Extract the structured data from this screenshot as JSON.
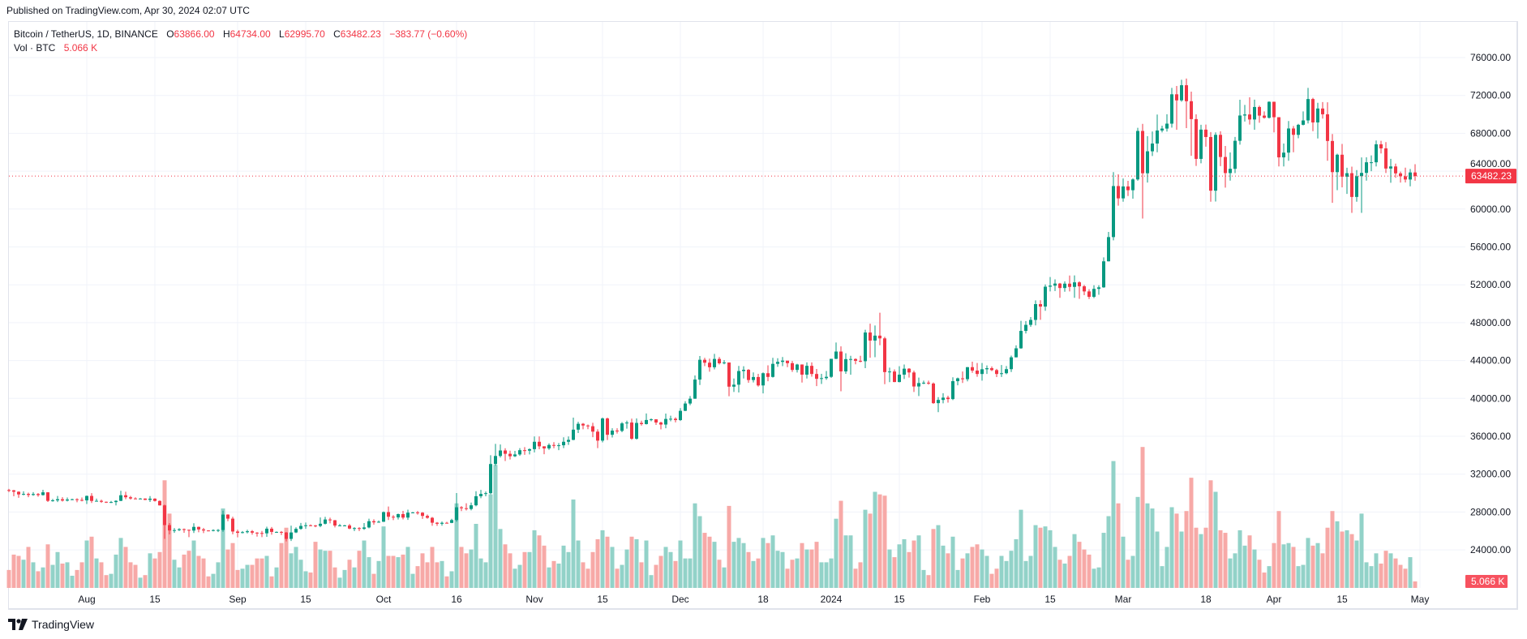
{
  "published": "Published on TradingView.com, Apr 30, 2024 02:07 UTC",
  "legend": {
    "symbol": "Bitcoin / TetherUS, 1D, BINANCE",
    "o_label": "O",
    "open": "63866.00",
    "h_label": "H",
    "high": "64734.00",
    "l_label": "L",
    "low": "62995.70",
    "c_label": "C",
    "close": "63482.23",
    "change": "−383.77 (−0.60%)",
    "vol_label": "Vol · BTC",
    "vol_value": "5.066 K"
  },
  "footer": {
    "brand": "TradingView"
  },
  "colors": {
    "up": "#089981",
    "down": "#f23645",
    "vol_up": "#92d2c8",
    "vol_down": "#f7a9a7",
    "price_label_bg": "#f23645",
    "vol_label_bg": "#f7525f",
    "grid": "#f0f3fa"
  },
  "chart_data": {
    "type": "candlestick",
    "title": "Bitcoin / TetherUS, 1D, BINANCE",
    "start_date": "2023-07-16",
    "first_open": 30320,
    "note": "open of each day equals previous close",
    "close": [
      30290,
      30140,
      29860,
      29910,
      29800,
      29900,
      29790,
      30080,
      29180,
      29230,
      29350,
      29210,
      29320,
      29350,
      29280,
      29230,
      29700,
      29170,
      29180,
      29080,
      29040,
      29050,
      29180,
      29770,
      29560,
      29430,
      29400,
      29420,
      29280,
      29410,
      29170,
      28700,
      26620,
      26050,
      26090,
      26190,
      26120,
      26040,
      26430,
      26160,
      26050,
      26010,
      26090,
      26100,
      27730,
      27300,
      25940,
      25800,
      25870,
      25970,
      25820,
      25780,
      25750,
      26240,
      25900,
      25900,
      25840,
      25160,
      25840,
      26220,
      26530,
      26600,
      26570,
      26530,
      26760,
      27210,
      27130,
      26570,
      26580,
      26580,
      26250,
      26300,
      26220,
      26370,
      27030,
      26910,
      26970,
      27990,
      27500,
      27430,
      27780,
      27410,
      27930,
      27960,
      27930,
      27590,
      27390,
      26870,
      26760,
      26860,
      26850,
      27150,
      28500,
      28400,
      28320,
      28710,
      29670,
      29910,
      29990,
      33070,
      33920,
      34500,
      34150,
      33890,
      34080,
      34530,
      34480,
      34640,
      35420,
      34940,
      34720,
      35080,
      35010,
      35050,
      35420,
      35620,
      36700,
      37320,
      37140,
      37060,
      36490,
      35540,
      37880,
      36160,
      36600,
      36570,
      37360,
      37450,
      35740,
      37410,
      37290,
      37720,
      37790,
      37450,
      37240,
      37830,
      37850,
      37710,
      38690,
      39460,
      39970,
      41990,
      44080,
      43770,
      43290,
      44170,
      43710,
      43790,
      41240,
      41450,
      42890,
      43020,
      41940,
      42260,
      41370,
      42660,
      42270,
      43650,
      43860,
      43990,
      43720,
      43010,
      43580,
      42510,
      43440,
      42580,
      42070,
      42140,
      42280,
      44180,
      44950,
      42850,
      44150,
      44160,
      43970,
      43930,
      46960,
      46110,
      46630,
      46340,
      42780,
      42840,
      41730,
      42510,
      43140,
      42740,
      41260,
      41620,
      41660,
      41570,
      39500,
      39840,
      40080,
      39930,
      41820,
      42120,
      42030,
      43300,
      42940,
      42580,
      43080,
      43190,
      42990,
      42580,
      42660,
      43090,
      44340,
      45290,
      47130,
      47770,
      48290,
      49960,
      49700,
      51800,
      51910,
      52130,
      51660,
      52120,
      51780,
      52260,
      51840,
      51300,
      50730,
      51570,
      51730,
      54480,
      57040,
      62430,
      61130,
      62390,
      61990,
      63130,
      68250,
      63780,
      66100,
      66920,
      68300,
      68500,
      69020,
      72120,
      71480,
      73080,
      71390,
      69500,
      65300,
      68390,
      67610,
      61940,
      67840,
      65500,
      63800,
      64250,
      67210,
      69880,
      69990,
      69460,
      70780,
      69870,
      69640,
      71330,
      69700,
      65460,
      65960,
      68510,
      67840,
      68900,
      69360,
      71620,
      69150,
      70620,
      70010,
      67190,
      63900,
      65740,
      63420,
      63790,
      61280,
      63470,
      63820,
      64940,
      64940,
      66840,
      66410,
      64280,
      64500,
      63770,
      63460,
      63120,
      63866,
      63482.23
    ],
    "high": [
      30440,
      30340,
      30190,
      30190,
      30050,
      30100,
      30000,
      30350,
      30100,
      29380,
      29690,
      29570,
      29530,
      29410,
      29450,
      29530,
      29740,
      29990,
      29420,
      29310,
      29110,
      29170,
      29240,
      30240,
      30140,
      29700,
      29550,
      29480,
      29450,
      29680,
      29460,
      29220,
      28780,
      26830,
      26300,
      26290,
      26260,
      26140,
      26810,
      26460,
      26320,
      26080,
      26170,
      26190,
      28140,
      27760,
      27500,
      26130,
      25990,
      26130,
      26100,
      25870,
      26000,
      26450,
      26420,
      25950,
      25990,
      25880,
      26560,
      26390,
      26850,
      26890,
      26680,
      26630,
      27420,
      27490,
      27400,
      27160,
      26740,
      26640,
      26740,
      26400,
      26400,
      26840,
      27300,
      27230,
      27100,
      28060,
      28580,
      27670,
      27830,
      28120,
      28250,
      28000,
      28110,
      27990,
      27730,
      27480,
      26940,
      27000,
      26960,
      27290,
      30000,
      28620,
      28920,
      29000,
      30200,
      30340,
      30170,
      34000,
      35200,
      35130,
      34740,
      34480,
      34460,
      34750,
      34850,
      34720,
      35980,
      35980,
      34940,
      35250,
      35380,
      35280,
      35890,
      35980,
      37970,
      37530,
      37400,
      37240,
      37420,
      36740,
      37980,
      37970,
      36850,
      36850,
      37500,
      37650,
      37860,
      37880,
      37650,
      38410,
      37880,
      37800,
      37540,
      38400,
      38170,
      38000,
      38980,
      39700,
      40250,
      42420,
      44480,
      44290,
      44200,
      44700,
      44370,
      44040,
      43780,
      42100,
      43430,
      43400,
      43100,
      42750,
      42590,
      42740,
      43490,
      44290,
      44240,
      44370,
      43820,
      43950,
      43650,
      43590,
      43800,
      43800,
      43110,
      42600,
      42900,
      44180,
      45900,
      45500,
      44770,
      44500,
      44230,
      44500,
      47250,
      47900,
      47700,
      49050,
      46500,
      43250,
      43070,
      43400,
      43580,
      43200,
      42930,
      42200,
      41880,
      41880,
      41680,
      40130,
      40550,
      40280,
      42230,
      42200,
      42840,
      43310,
      43880,
      43740,
      43740,
      43480,
      43380,
      43120,
      43530,
      43420,
      44520,
      45600,
      48200,
      48170,
      48590,
      50360,
      50370,
      52040,
      52820,
      52570,
      52200,
      52360,
      52980,
      52990,
      52370,
      51980,
      51540,
      51950,
      51950,
      54900,
      57580,
      63900,
      63680,
      63230,
      62980,
      63250,
      68580,
      69000,
      67700,
      68200,
      69980,
      68800,
      70010,
      72800,
      73000,
      73650,
      73780,
      72400,
      70000,
      68900,
      68920,
      68130,
      68100,
      68220,
      66660,
      65980,
      67620,
      71550,
      71000,
      71800,
      71560,
      70930,
      70320,
      71370,
      71340,
      69700,
      66920,
      69300,
      68770,
      69000,
      70310,
      72800,
      71750,
      71230,
      71300,
      71280,
      67930,
      65850,
      66880,
      64360,
      64480,
      64120,
      65450,
      65470,
      65670,
      67240,
      67210,
      67070,
      65300,
      64800,
      63950,
      64370,
      64230,
      64734
    ],
    "low": [
      30110,
      29660,
      29500,
      29770,
      29570,
      29720,
      29620,
      29740,
      29060,
      29090,
      29050,
      29100,
      29120,
      29250,
      29030,
      29130,
      28850,
      28950,
      29100,
      28970,
      28950,
      28960,
      28700,
      29150,
      29350,
      29310,
      29350,
      29360,
      29250,
      29060,
      29100,
      28690,
      25170,
      25640,
      25800,
      25990,
      25810,
      25350,
      25790,
      25860,
      25780,
      25970,
      25960,
      25880,
      25910,
      27030,
      25650,
      25330,
      25740,
      25740,
      25600,
      25400,
      25350,
      25380,
      25600,
      25800,
      25570,
      24900,
      24940,
      25770,
      26130,
      26220,
      26500,
      26400,
      26400,
      26690,
      26800,
      26370,
      26500,
      26500,
      26180,
      25990,
      25990,
      26120,
      26280,
      26660,
      26870,
      26950,
      27160,
      27150,
      27210,
      27220,
      27170,
      27860,
      27720,
      27270,
      27300,
      26550,
      26530,
      26560,
      26810,
      26820,
      26970,
      28100,
      28160,
      28170,
      28600,
      29460,
      29660,
      29880,
      32880,
      33750,
      33390,
      33550,
      33800,
      33930,
      34040,
      34080,
      34300,
      34630,
      34110,
      34570,
      34740,
      34530,
      34750,
      35090,
      35580,
      36340,
      36740,
      36750,
      35900,
      34750,
      35360,
      35600,
      35870,
      36290,
      36430,
      36800,
      35620,
      35650,
      37120,
      37240,
      37580,
      37200,
      36730,
      36850,
      37580,
      37470,
      37620,
      38650,
      39280,
      39960,
      41420,
      43410,
      42820,
      43070,
      43580,
      43600,
      40230,
      40680,
      40630,
      42100,
      41650,
      41690,
      41250,
      40530,
      41810,
      42200,
      43330,
      43410,
      43300,
      42800,
      42730,
      41670,
      42100,
      42300,
      41300,
      41520,
      41960,
      42170,
      44150,
      40750,
      42600,
      42500,
      43600,
      43800,
      43200,
      44300,
      44350,
      45610,
      41500,
      41720,
      41720,
      41700,
      42050,
      42200,
      40680,
      40250,
      41500,
      41450,
      39430,
      38550,
      39480,
      39550,
      39820,
      41390,
      41630,
      41800,
      42700,
      42280,
      41880,
      42580,
      42880,
      42250,
      42260,
      42550,
      42790,
      44330,
      45240,
      46860,
      47560,
      47710,
      48300,
      49260,
      51300,
      51340,
      50620,
      51270,
      51300,
      50620,
      50520,
      50900,
      50500,
      50590,
      50950,
      51680,
      54470,
      56700,
      60360,
      60770,
      61370,
      61100,
      62990,
      59000,
      62800,
      65600,
      66000,
      68100,
      68180,
      68600,
      68380,
      71330,
      68550,
      65630,
      64550,
      64830,
      66590,
      60780,
      60800,
      64530,
      62260,
      63000,
      63790,
      66800,
      69240,
      68920,
      68380,
      69120,
      69550,
      69560,
      68100,
      64500,
      64500,
      65100,
      66000,
      67480,
      68840,
      69040,
      68230,
      67460,
      69550,
      65100,
      60660,
      62000,
      62300,
      61600,
      59600,
      60770,
      59600,
      63000,
      64000,
      64500,
      65870,
      63800,
      62780,
      63300,
      62800,
      62810,
      62400,
      62995.7
    ],
    "volume_k": [
      14,
      26,
      25,
      22,
      32,
      20,
      13,
      16,
      34,
      18,
      28,
      19,
      20,
      9.5,
      14,
      20,
      37,
      40,
      23,
      20,
      10,
      11,
      26,
      39,
      32,
      20,
      18,
      8,
      10,
      27,
      23,
      28,
      84,
      58,
      22,
      16,
      26,
      29,
      37,
      25,
      23,
      9,
      11,
      20,
      62,
      30,
      35,
      14,
      15,
      18,
      18,
      23,
      23,
      25,
      9,
      16,
      35,
      47,
      27,
      32,
      22,
      13,
      12,
      36,
      30,
      29,
      29,
      16,
      8,
      14,
      22,
      16,
      29,
      37,
      24,
      11,
      21,
      48,
      25,
      25,
      24,
      26,
      32,
      11,
      17,
      27,
      20,
      32,
      20,
      21,
      9,
      13,
      66,
      32,
      27,
      30,
      50,
      23,
      20,
      73,
      96,
      46,
      34,
      27,
      15,
      18,
      28,
      28,
      45,
      41,
      33,
      16,
      21,
      19,
      33,
      28,
      69,
      37,
      20,
      15,
      28,
      38,
      45,
      40,
      32,
      15,
      18,
      30,
      40,
      38,
      20,
      37,
      10,
      18,
      25,
      32,
      28,
      21,
      37,
      23,
      23,
      66,
      56,
      43,
      40,
      36,
      22,
      16,
      64,
      36,
      39,
      35,
      28,
      21,
      23,
      39,
      35,
      41,
      29,
      28,
      15,
      22,
      23,
      35,
      30,
      30,
      36,
      20,
      20,
      23,
      54,
      68,
      41,
      41,
      15,
      20,
      61,
      58,
      75,
      73,
      72,
      30,
      24,
      34,
      38,
      28,
      37,
      41,
      14,
      10,
      46,
      49,
      33,
      27,
      40,
      14,
      23,
      27,
      32,
      34,
      30,
      25,
      11,
      15,
      25,
      21,
      29,
      38,
      61,
      21,
      25,
      49,
      47,
      48,
      45,
      32,
      22,
      19,
      25,
      42,
      36,
      30,
      26,
      15,
      16,
      43,
      56,
      99,
      66,
      40,
      22,
      25,
      71,
      110,
      66,
      62,
      44,
      17,
      32,
      63,
      58,
      44,
      60,
      86,
      47,
      42,
      47,
      84,
      75,
      45,
      43,
      23,
      27,
      45,
      33,
      41,
      30,
      22,
      12,
      17,
      35,
      60,
      34,
      35,
      32,
      17,
      18,
      39,
      33,
      35,
      27,
      47,
      60,
      52,
      44,
      45,
      42,
      37,
      58,
      20,
      17,
      27,
      19,
      29,
      27,
      23,
      18,
      15,
      24,
      5.066
    ],
    "price_axis": {
      "ticks": [
        "76000.00",
        "72000.00",
        "68000.00",
        "64000.00",
        "60000.00",
        "56000.00",
        "52000.00",
        "48000.00",
        "44000.00",
        "40000.00",
        "36000.00",
        "32000.00",
        "28000.00",
        "24000.00"
      ],
      "values": [
        76000,
        72000,
        68000,
        64000,
        60000,
        56000,
        52000,
        48000,
        44000,
        40000,
        36000,
        32000,
        28000,
        24000
      ]
    },
    "time_axis": [
      {
        "label": "Aug",
        "date": "2023-08-01"
      },
      {
        "label": "15",
        "date": "2023-08-15"
      },
      {
        "label": "Sep",
        "date": "2023-09-01"
      },
      {
        "label": "15",
        "date": "2023-09-15"
      },
      {
        "label": "Oct",
        "date": "2023-10-01"
      },
      {
        "label": "16",
        "date": "2023-10-16"
      },
      {
        "label": "Nov",
        "date": "2023-11-01"
      },
      {
        "label": "15",
        "date": "2023-11-15"
      },
      {
        "label": "Dec",
        "date": "2023-12-01"
      },
      {
        "label": "18",
        "date": "2023-12-18"
      },
      {
        "label": "2024",
        "date": "2024-01-01"
      },
      {
        "label": "15",
        "date": "2024-01-15"
      },
      {
        "label": "Feb",
        "date": "2024-02-01"
      },
      {
        "label": "15",
        "date": "2024-02-15"
      },
      {
        "label": "Mar",
        "date": "2024-03-01"
      },
      {
        "label": "18",
        "date": "2024-03-18"
      },
      {
        "label": "Apr",
        "date": "2024-04-01"
      },
      {
        "label": "15",
        "date": "2024-04-15"
      },
      {
        "label": "May",
        "date": "2024-05-01"
      }
    ],
    "last_price": 63482.23,
    "last_price_label": "63482.23",
    "last_volume_label": "5.066 K"
  }
}
